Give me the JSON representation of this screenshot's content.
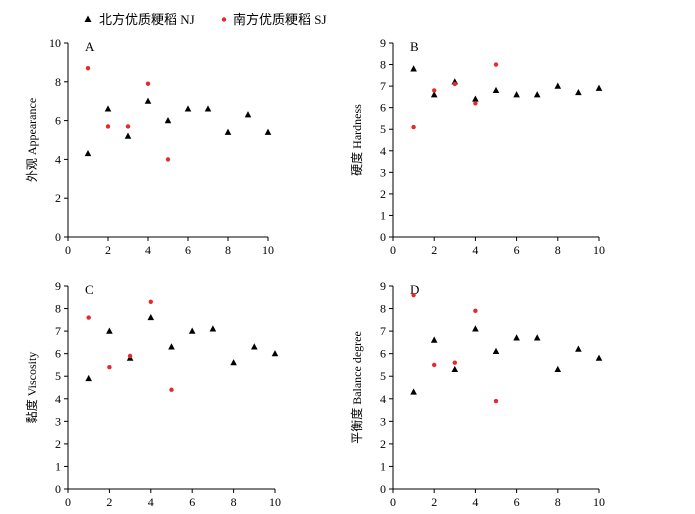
{
  "legend": [
    {
      "label": "北方优质粳稻 NJ",
      "marker": "triangle",
      "color": "#000000"
    },
    {
      "label": "南方优质粳稻 SJ",
      "marker": "circle",
      "color": "#e8282b"
    }
  ],
  "chart_data": [
    {
      "type": "scatter",
      "panel": "A",
      "xlabel": "",
      "ylabel": "外观 Appearance",
      "xlim": [
        0,
        10
      ],
      "ylim": [
        0,
        10
      ],
      "xticks": [
        0,
        2,
        4,
        6,
        8,
        10
      ],
      "yticks": [
        0,
        2,
        4,
        6,
        8,
        10
      ],
      "series": [
        {
          "name": "北方优质粳稻 NJ",
          "x": [
            1,
            2,
            3,
            4,
            5,
            6,
            7,
            8,
            9,
            10
          ],
          "y": [
            4.3,
            6.6,
            5.2,
            7.0,
            6.0,
            6.6,
            6.6,
            5.4,
            6.3,
            5.4
          ]
        },
        {
          "name": "南方优质粳稻 SJ",
          "x": [
            1,
            2,
            3,
            4,
            5
          ],
          "y": [
            8.7,
            5.7,
            5.7,
            7.9,
            4.0
          ]
        }
      ]
    },
    {
      "type": "scatter",
      "panel": "B",
      "xlabel": "",
      "ylabel": "硬度 Hardness",
      "xlim": [
        0,
        10
      ],
      "ylim": [
        0,
        9
      ],
      "xticks": [
        0,
        2,
        4,
        6,
        8,
        10
      ],
      "yticks": [
        0,
        1,
        2,
        3,
        4,
        5,
        6,
        7,
        8,
        9
      ],
      "series": [
        {
          "name": "北方优质粳稻 NJ",
          "x": [
            1,
            2,
            3,
            4,
            5,
            6,
            7,
            8,
            9,
            10
          ],
          "y": [
            7.8,
            6.6,
            7.2,
            6.4,
            6.8,
            6.6,
            6.6,
            7.0,
            6.7,
            6.9
          ]
        },
        {
          "name": "南方优质粳稻 SJ",
          "x": [
            1,
            2,
            3,
            4,
            5
          ],
          "y": [
            5.1,
            6.8,
            7.1,
            6.2,
            8.0
          ]
        }
      ]
    },
    {
      "type": "scatter",
      "panel": "C",
      "xlabel": "",
      "ylabel": "黏度 Viscosity",
      "xlim": [
        0,
        10
      ],
      "ylim": [
        0,
        9
      ],
      "xticks": [
        0,
        2,
        4,
        6,
        8,
        10
      ],
      "yticks": [
        0,
        1,
        2,
        3,
        4,
        5,
        6,
        7,
        8,
        9
      ],
      "series": [
        {
          "name": "北方优质粳稻 NJ",
          "x": [
            1,
            2,
            3,
            4,
            5,
            6,
            7,
            8,
            9,
            10
          ],
          "y": [
            4.9,
            7.0,
            5.8,
            7.6,
            6.3,
            7.0,
            7.1,
            5.6,
            6.3,
            6.0
          ]
        },
        {
          "name": "南方优质粳稻 SJ",
          "x": [
            1,
            2,
            3,
            4,
            5
          ],
          "y": [
            7.6,
            5.4,
            5.9,
            8.3,
            4.4
          ]
        }
      ]
    },
    {
      "type": "scatter",
      "panel": "D",
      "xlabel": "",
      "ylabel": "平衡度 Balance degree",
      "xlim": [
        0,
        10
      ],
      "ylim": [
        0,
        9
      ],
      "xticks": [
        0,
        2,
        4,
        6,
        8,
        10
      ],
      "yticks": [
        0,
        1,
        2,
        3,
        4,
        5,
        6,
        7,
        8,
        9
      ],
      "series": [
        {
          "name": "北方优质粳稻 NJ",
          "x": [
            1,
            2,
            3,
            4,
            5,
            6,
            7,
            8,
            9,
            10
          ],
          "y": [
            4.3,
            6.6,
            5.3,
            7.1,
            6.1,
            6.7,
            6.7,
            5.3,
            6.2,
            5.8
          ]
        },
        {
          "name": "南方优质粳稻 SJ",
          "x": [
            1,
            2,
            3,
            4,
            5
          ],
          "y": [
            8.6,
            5.5,
            5.6,
            7.9,
            3.9
          ]
        }
      ]
    }
  ]
}
